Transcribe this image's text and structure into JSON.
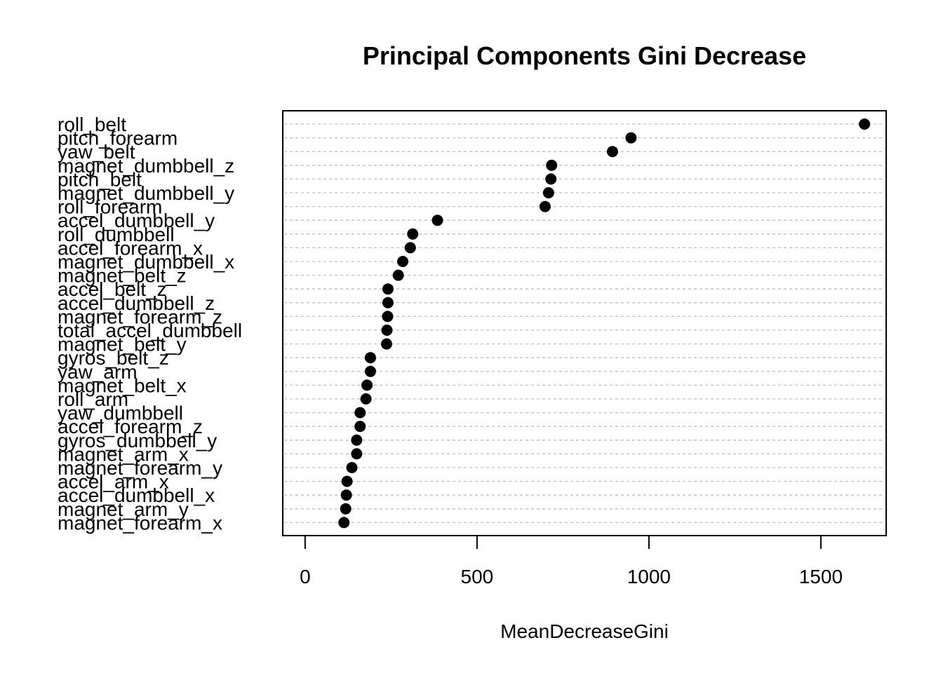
{
  "chart_data": {
    "type": "scatter",
    "variant": "dotchart",
    "title": "Principal Components Gini Decrease",
    "xlabel": "MeanDecreaseGini",
    "ylabel": "",
    "xlim": [
      -65,
      1690
    ],
    "xticks": [
      0,
      500,
      1000,
      1500
    ],
    "grid": "dotted horizontal",
    "categories": [
      "roll_belt",
      "pitch_forearm",
      "yaw_belt",
      "magnet_dumbbell_z",
      "pitch_belt",
      "magnet_dumbbell_y",
      "roll_forearm",
      "accel_dumbbell_y",
      "roll_dumbbell",
      "accel_forearm_x",
      "magnet_dumbbell_x",
      "magnet_belt_z",
      "accel_belt_z",
      "accel_dumbbell_z",
      "magnet_forearm_z",
      "total_accel_dumbbell",
      "magnet_belt_y",
      "gyros_belt_z",
      "yaw_arm",
      "magnet_belt_x",
      "roll_arm",
      "yaw_dumbbell",
      "accel_forearm_z",
      "gyros_dumbbell_y",
      "magnet_arm_x",
      "magnet_forearm_y",
      "accel_arm_x",
      "accel_dumbbell_x",
      "magnet_arm_y",
      "magnet_forearm_x"
    ],
    "values": [
      1627,
      948,
      894,
      717,
      715,
      708,
      698,
      385,
      313,
      306,
      284,
      271,
      241,
      241,
      240,
      238,
      237,
      190,
      190,
      180,
      177,
      160,
      160,
      150,
      150,
      136,
      122,
      120,
      118,
      113
    ]
  }
}
